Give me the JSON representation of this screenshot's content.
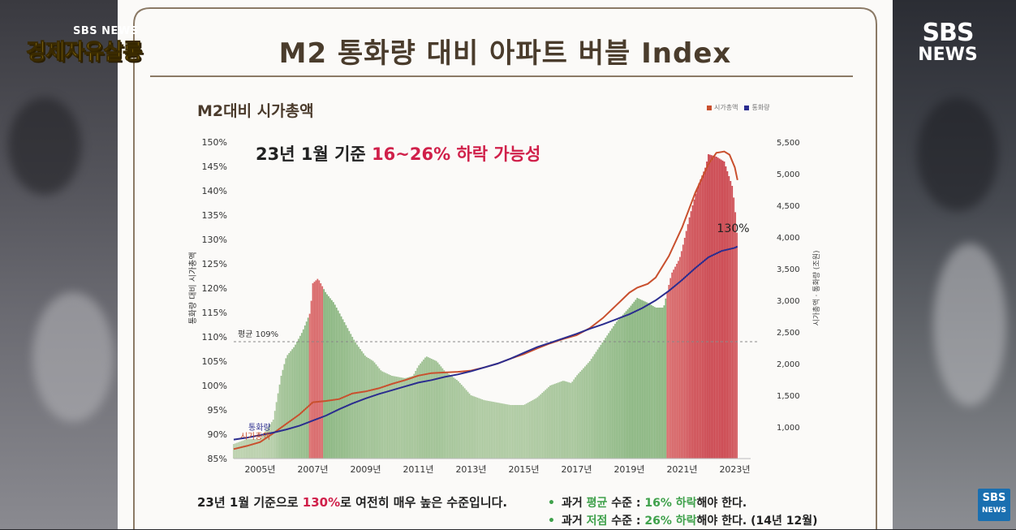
{
  "page": {
    "title": "M2 통화량 대비 아파트 버블 Index",
    "chart_title": "M2대비 시가총액",
    "headline_prefix": "23년 1월 기준 ",
    "headline_highlight": "16~26% 하락 가능성",
    "summary_prefix": "23년 1월 기준으로 ",
    "summary_highlight": "130%",
    "summary_suffix": "로 여전히 매우 높은 수준입니다.",
    "note1": {
      "a": "과거 ",
      "b": "평균",
      "c": " 수준 : ",
      "d": "16% 하락",
      "e": "해야 한다."
    },
    "note2": {
      "a": "과거 ",
      "b": "저점",
      "c": " 수준 : ",
      "d": "26% 하락",
      "e": "해야 한다. (14년 12월)"
    }
  },
  "logos": {
    "top_left_small": "SBS NEWS",
    "top_left_big": "경제자유살롱",
    "top_right_1": "SBS",
    "top_right_2": "NEWS",
    "bottom_right_1": "SBS",
    "bottom_right_2": "NEWS"
  },
  "colors": {
    "market_cap": "#c9502e",
    "money_supply": "#2b2d8f",
    "bar_green": "#5fae55",
    "bar_red": "#d03a4e",
    "highlight_red": "#d0204a",
    "highlight_green": "#3fa14b"
  },
  "chart_data": {
    "type": "bar",
    "left_axis": {
      "label": "통화량 대비 시가총액",
      "ticks": [
        "150%",
        "145%",
        "140%",
        "135%",
        "130%",
        "125%",
        "120%",
        "115%",
        "110%",
        "105%",
        "100%",
        "95%",
        "90%",
        "85%"
      ],
      "range": [
        85,
        150
      ]
    },
    "right_axis": {
      "label": "시가총액 · 통화량 (조원)",
      "ticks": [
        "5,500",
        "5,000",
        "4,500",
        "4,000",
        "3,500",
        "3,000",
        "2,500",
        "2,000",
        "1,500",
        "1,000"
      ],
      "range": [
        500,
        5500
      ]
    },
    "x_ticks": [
      "2005년",
      "2007년",
      "2009년",
      "2011년",
      "2013년",
      "2015년",
      "2017년",
      "2019년",
      "2021년",
      "2023년"
    ],
    "legend": [
      "시가총액",
      "통화량"
    ],
    "average_line": {
      "label": "평균 109%",
      "value": 109
    },
    "end_label": "130%",
    "ratio_series": [
      [
        2004.0,
        88
      ],
      [
        2004.5,
        89
      ],
      [
        2005.0,
        89
      ],
      [
        2005.5,
        93
      ],
      [
        2005.8,
        102
      ],
      [
        2006.0,
        106
      ],
      [
        2006.3,
        108
      ],
      [
        2006.6,
        111
      ],
      [
        2006.9,
        115
      ],
      [
        2007.0,
        121
      ],
      [
        2007.2,
        122
      ],
      [
        2007.5,
        119
      ],
      [
        2007.8,
        117
      ],
      [
        2008.2,
        113
      ],
      [
        2008.6,
        109
      ],
      [
        2009.0,
        106
      ],
      [
        2009.3,
        105
      ],
      [
        2009.6,
        103
      ],
      [
        2010.0,
        102
      ],
      [
        2010.5,
        101.5
      ],
      [
        2010.8,
        102
      ],
      [
        2011.0,
        104
      ],
      [
        2011.3,
        106
      ],
      [
        2011.7,
        105
      ],
      [
        2012.0,
        103
      ],
      [
        2012.5,
        101
      ],
      [
        2013.0,
        98
      ],
      [
        2013.5,
        97
      ],
      [
        2014.0,
        96.5
      ],
      [
        2014.5,
        96
      ],
      [
        2015.0,
        96
      ],
      [
        2015.5,
        97.5
      ],
      [
        2016.0,
        100
      ],
      [
        2016.5,
        101
      ],
      [
        2016.8,
        100.5
      ],
      [
        2017.0,
        102
      ],
      [
        2017.5,
        105
      ],
      [
        2018.0,
        109
      ],
      [
        2018.5,
        113
      ],
      [
        2019.0,
        116
      ],
      [
        2019.3,
        118
      ],
      [
        2019.7,
        117
      ],
      [
        2020.0,
        116
      ],
      [
        2020.3,
        116
      ],
      [
        2020.6,
        123
      ],
      [
        2020.9,
        126
      ],
      [
        2021.0,
        128
      ],
      [
        2021.3,
        135
      ],
      [
        2021.6,
        141
      ],
      [
        2021.9,
        145
      ],
      [
        2022.0,
        147.5
      ],
      [
        2022.3,
        147
      ],
      [
        2022.6,
        146
      ],
      [
        2022.9,
        141
      ],
      [
        2023.0,
        137
      ],
      [
        2023.1,
        130
      ]
    ],
    "market_cap_series": [
      [
        2004.0,
        650
      ],
      [
        2004.5,
        700
      ],
      [
        2005.0,
        760
      ],
      [
        2005.5,
        900
      ],
      [
        2006.0,
        1050
      ],
      [
        2006.5,
        1200
      ],
      [
        2007.0,
        1390
      ],
      [
        2007.5,
        1410
      ],
      [
        2008.0,
        1440
      ],
      [
        2008.5,
        1530
      ],
      [
        2009.0,
        1560
      ],
      [
        2009.5,
        1610
      ],
      [
        2010.0,
        1680
      ],
      [
        2010.5,
        1740
      ],
      [
        2011.0,
        1810
      ],
      [
        2011.5,
        1850
      ],
      [
        2012.0,
        1860
      ],
      [
        2012.5,
        1870
      ],
      [
        2013.0,
        1890
      ],
      [
        2013.5,
        1940
      ],
      [
        2014.0,
        2000
      ],
      [
        2014.5,
        2080
      ],
      [
        2015.0,
        2150
      ],
      [
        2015.5,
        2240
      ],
      [
        2016.0,
        2320
      ],
      [
        2016.5,
        2390
      ],
      [
        2017.0,
        2450
      ],
      [
        2017.5,
        2560
      ],
      [
        2018.0,
        2720
      ],
      [
        2018.5,
        2920
      ],
      [
        2019.0,
        3120
      ],
      [
        2019.3,
        3200
      ],
      [
        2019.7,
        3260
      ],
      [
        2020.0,
        3360
      ],
      [
        2020.5,
        3700
      ],
      [
        2021.0,
        4150
      ],
      [
        2021.5,
        4700
      ],
      [
        2022.0,
        5150
      ],
      [
        2022.3,
        5330
      ],
      [
        2022.6,
        5350
      ],
      [
        2022.8,
        5300
      ],
      [
        2023.0,
        5100
      ],
      [
        2023.1,
        4900
      ]
    ],
    "money_supply_series": [
      [
        2004.0,
        800
      ],
      [
        2004.5,
        830
      ],
      [
        2005.0,
        870
      ],
      [
        2005.5,
        910
      ],
      [
        2006.0,
        960
      ],
      [
        2006.5,
        1020
      ],
      [
        2007.0,
        1100
      ],
      [
        2007.5,
        1180
      ],
      [
        2008.0,
        1280
      ],
      [
        2008.5,
        1370
      ],
      [
        2009.0,
        1450
      ],
      [
        2009.5,
        1520
      ],
      [
        2010.0,
        1580
      ],
      [
        2010.5,
        1640
      ],
      [
        2011.0,
        1700
      ],
      [
        2011.5,
        1740
      ],
      [
        2012.0,
        1790
      ],
      [
        2012.5,
        1830
      ],
      [
        2013.0,
        1880
      ],
      [
        2013.5,
        1940
      ],
      [
        2014.0,
        2000
      ],
      [
        2014.5,
        2080
      ],
      [
        2015.0,
        2170
      ],
      [
        2015.5,
        2260
      ],
      [
        2016.0,
        2330
      ],
      [
        2016.5,
        2400
      ],
      [
        2017.0,
        2470
      ],
      [
        2017.5,
        2550
      ],
      [
        2018.0,
        2620
      ],
      [
        2018.5,
        2700
      ],
      [
        2019.0,
        2780
      ],
      [
        2019.5,
        2880
      ],
      [
        2020.0,
        3000
      ],
      [
        2020.5,
        3150
      ],
      [
        2021.0,
        3320
      ],
      [
        2021.5,
        3510
      ],
      [
        2022.0,
        3680
      ],
      [
        2022.5,
        3780
      ],
      [
        2023.0,
        3830
      ],
      [
        2023.1,
        3850
      ]
    ],
    "series_labels": [
      "통화량",
      "시가총액"
    ]
  }
}
